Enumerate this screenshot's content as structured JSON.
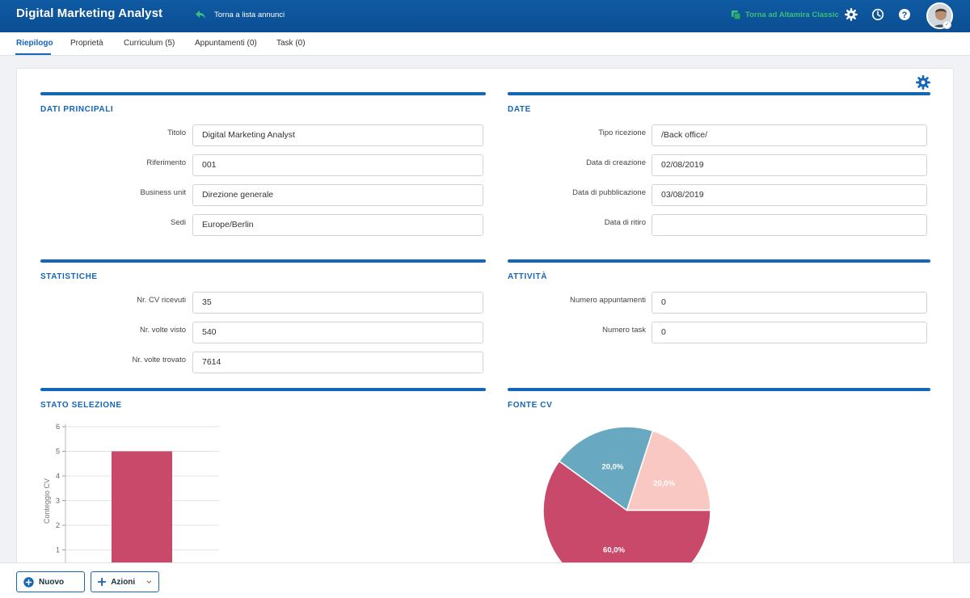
{
  "header": {
    "title": "Digital Marketing Analyst",
    "back_label": "Torna a lista annunci",
    "classic_label": "Torna ad Altamira Classic",
    "colors": {
      "bar": "#0f5aa3",
      "classic_link": "#39c07a"
    }
  },
  "tabs": [
    {
      "label": "Riepilogo",
      "active": true
    },
    {
      "label": "Proprietà"
    },
    {
      "label": "Curriculum (5)"
    },
    {
      "label": "Appuntamenti (0)"
    },
    {
      "label": "Task (0)"
    }
  ],
  "sections": {
    "dati_principali": {
      "title": "DATI PRINCIPALI",
      "fields": [
        {
          "label": "Titolo",
          "value": "Digital Marketing Analyst"
        },
        {
          "label": "Riferimento",
          "value": "001"
        },
        {
          "label": "Business unit",
          "value": "Direzione generale"
        },
        {
          "label": "Sedi",
          "value": "Europe/Berlin"
        }
      ]
    },
    "date": {
      "title": "DATE",
      "fields": [
        {
          "label": "Tipo ricezione",
          "value": "/Back office/"
        },
        {
          "label": "Data di creazione",
          "value": "02/08/2019"
        },
        {
          "label": "Data di pubblicazione",
          "value": "03/08/2019"
        },
        {
          "label": "Data di ritiro",
          "value": ""
        }
      ]
    },
    "statistiche": {
      "title": "STATISTICHE",
      "fields": [
        {
          "label": "Nr. CV ricevuti",
          "value": "35"
        },
        {
          "label": "Nr. volte visto",
          "value": "540"
        },
        {
          "label": "Nr. volte trovato",
          "value": "7614"
        }
      ]
    },
    "attivita": {
      "title": "ATTIVITÀ",
      "fields": [
        {
          "label": "Numero appuntamenti",
          "value": "0"
        },
        {
          "label": "Numero task",
          "value": "0"
        }
      ]
    },
    "stato_selezione": {
      "title": "STATO SELEZIONE"
    },
    "fonte_cv": {
      "title": "FONTE CV"
    }
  },
  "chart_data": [
    {
      "type": "bar",
      "ylabel": "Conteggio CV",
      "ylim": [
        0,
        6
      ],
      "yticks": [
        "1",
        "2",
        "3",
        "4",
        "5",
        "6"
      ],
      "grid": true,
      "categories": [
        ""
      ],
      "values": [
        5
      ],
      "color": "#c8496a"
    },
    {
      "type": "pie",
      "slices": [
        {
          "value": 20.0,
          "label": "20,0%",
          "color": "#f9c8c3"
        },
        {
          "value": 60.0,
          "label": "60,0%",
          "color": "#c8496a"
        },
        {
          "value": 20.0,
          "label": "20,0%",
          "color": "#68a8c0"
        }
      ]
    }
  ],
  "footer": {
    "new_label": "Nuovo",
    "actions_label": "Azioni"
  }
}
